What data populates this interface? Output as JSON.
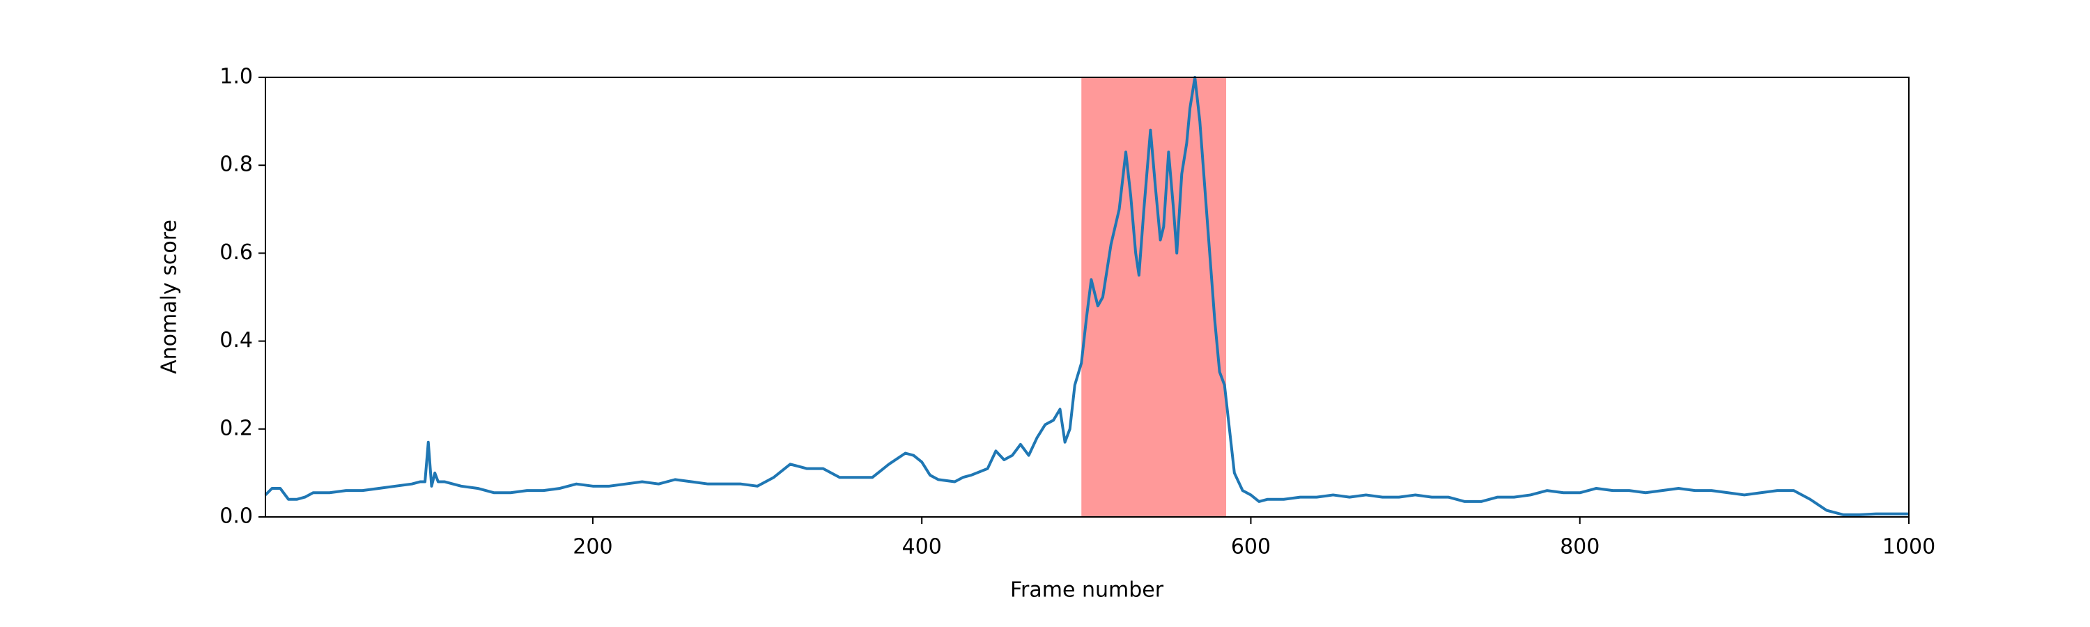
{
  "chart_data": {
    "type": "line",
    "xlabel": "Frame number",
    "ylabel": "Anomaly score",
    "xlim": [
      1,
      1000
    ],
    "ylim": [
      0,
      1
    ],
    "xticks": [
      200,
      400,
      600,
      800,
      1000
    ],
    "yticks": [
      {
        "value": 0,
        "label": "0.0"
      },
      0.2,
      0.4,
      0.6,
      0.8,
      {
        "value": 1,
        "label": "1.0"
      }
    ],
    "highlight": {
      "start": 497,
      "end": 585,
      "color": "#ff9999"
    },
    "series": [
      {
        "color": "#1f77b4",
        "x": [
          1,
          5,
          10,
          15,
          20,
          25,
          30,
          40,
          50,
          60,
          70,
          80,
          90,
          95,
          98,
          100,
          102,
          104,
          106,
          110,
          120,
          130,
          140,
          150,
          160,
          170,
          180,
          190,
          200,
          210,
          220,
          230,
          240,
          250,
          260,
          270,
          280,
          290,
          300,
          310,
          320,
          330,
          340,
          350,
          360,
          370,
          380,
          390,
          395,
          400,
          405,
          410,
          420,
          425,
          430,
          440,
          445,
          450,
          455,
          460,
          465,
          470,
          475,
          480,
          484,
          487,
          490,
          493,
          497,
          500,
          503,
          507,
          510,
          515,
          520,
          524,
          527,
          530,
          532,
          535,
          539,
          542,
          545,
          547,
          550,
          553,
          555,
          558,
          561,
          563,
          566,
          569,
          572,
          575,
          578,
          581,
          584,
          587,
          590,
          595,
          600,
          605,
          610,
          620,
          630,
          640,
          650,
          660,
          670,
          680,
          690,
          700,
          710,
          720,
          730,
          740,
          750,
          760,
          770,
          780,
          790,
          800,
          810,
          820,
          830,
          840,
          850,
          860,
          870,
          880,
          890,
          900,
          910,
          920,
          930,
          940,
          950,
          960,
          970,
          980,
          990,
          1000
        ],
        "values": [
          0.05,
          0.065,
          0.065,
          0.04,
          0.04,
          0.045,
          0.055,
          0.055,
          0.06,
          0.06,
          0.065,
          0.07,
          0.075,
          0.08,
          0.08,
          0.17,
          0.07,
          0.1,
          0.08,
          0.08,
          0.07,
          0.065,
          0.055,
          0.055,
          0.06,
          0.06,
          0.065,
          0.075,
          0.07,
          0.07,
          0.075,
          0.08,
          0.075,
          0.085,
          0.08,
          0.075,
          0.075,
          0.075,
          0.07,
          0.09,
          0.12,
          0.11,
          0.11,
          0.09,
          0.09,
          0.09,
          0.12,
          0.145,
          0.14,
          0.125,
          0.095,
          0.085,
          0.08,
          0.09,
          0.095,
          0.11,
          0.15,
          0.13,
          0.14,
          0.165,
          0.14,
          0.18,
          0.21,
          0.22,
          0.245,
          0.17,
          0.2,
          0.3,
          0.35,
          0.45,
          0.54,
          0.48,
          0.5,
          0.62,
          0.7,
          0.83,
          0.73,
          0.6,
          0.55,
          0.7,
          0.88,
          0.75,
          0.63,
          0.66,
          0.83,
          0.7,
          0.6,
          0.78,
          0.85,
          0.93,
          1.0,
          0.9,
          0.75,
          0.6,
          0.45,
          0.33,
          0.3,
          0.2,
          0.1,
          0.06,
          0.05,
          0.035,
          0.04,
          0.04,
          0.045,
          0.045,
          0.05,
          0.045,
          0.05,
          0.045,
          0.045,
          0.05,
          0.045,
          0.045,
          0.035,
          0.035,
          0.045,
          0.045,
          0.05,
          0.06,
          0.055,
          0.055,
          0.065,
          0.06,
          0.06,
          0.055,
          0.06,
          0.065,
          0.06,
          0.06,
          0.055,
          0.05,
          0.055,
          0.06,
          0.06,
          0.04,
          0.015,
          0.005,
          0.005,
          0.007,
          0.007,
          0.007
        ]
      }
    ]
  }
}
